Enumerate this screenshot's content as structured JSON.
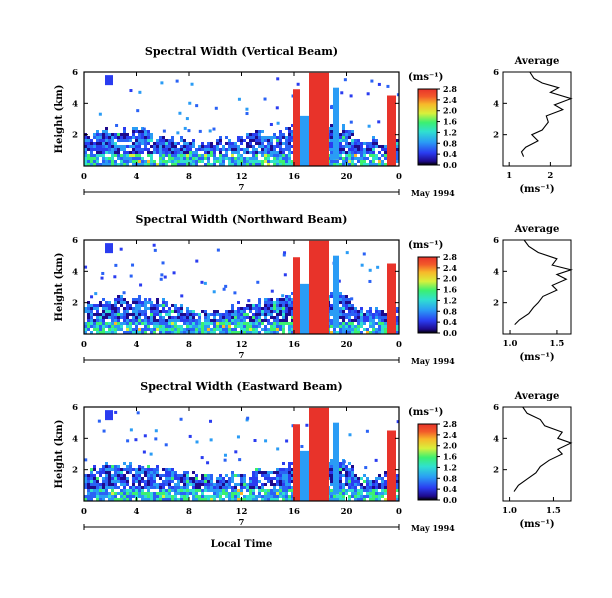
{
  "chart_data": {
    "type": "heatmap",
    "date_label": "May 1994",
    "xlabel": "Local Time",
    "unit_label": "(ms⁻¹)",
    "day_marker": "7",
    "x_ticks": [
      "0",
      "4",
      "8",
      "12",
      "16",
      "20",
      "0"
    ],
    "y_ticks": [
      "2",
      "4",
      "6"
    ],
    "colorbar_ticks": [
      "0.0",
      "0.4",
      "0.8",
      "1.2",
      "1.6",
      "2.0",
      "2.4",
      "2.8"
    ],
    "panels": [
      {
        "title": "Spectral Width (Vertical Beam)",
        "avg_title": "Average",
        "avg_xlabel": "(ms⁻¹)",
        "avg_ticks": [
          "1",
          "2"
        ],
        "avg_profile": [
          [
            1.35,
            0.6
          ],
          [
            1.3,
            0.9
          ],
          [
            1.4,
            1.2
          ],
          [
            1.7,
            1.6
          ],
          [
            1.55,
            2.0
          ],
          [
            1.8,
            2.3
          ],
          [
            1.95,
            2.8
          ],
          [
            1.9,
            3.2
          ],
          [
            2.3,
            3.6
          ],
          [
            2.1,
            3.9
          ],
          [
            2.5,
            4.3
          ],
          [
            2.0,
            4.7
          ],
          [
            2.2,
            5.0
          ],
          [
            1.8,
            5.3
          ],
          [
            1.6,
            5.6
          ],
          [
            1.5,
            6.0
          ]
        ]
      },
      {
        "title": "Spectral Width (Northward Beam)",
        "avg_title": "Average",
        "avg_xlabel": "(ms⁻¹)",
        "avg_ticks": [
          "1.0",
          "1.5"
        ],
        "avg_profile": [
          [
            1.05,
            0.6
          ],
          [
            1.1,
            0.9
          ],
          [
            1.2,
            1.3
          ],
          [
            1.25,
            1.7
          ],
          [
            1.3,
            2.0
          ],
          [
            1.35,
            2.4
          ],
          [
            1.5,
            2.8
          ],
          [
            1.45,
            3.1
          ],
          [
            1.6,
            3.5
          ],
          [
            1.5,
            3.8
          ],
          [
            1.65,
            4.1
          ],
          [
            1.45,
            4.4
          ],
          [
            1.5,
            4.8
          ],
          [
            1.3,
            5.2
          ],
          [
            1.2,
            5.6
          ],
          [
            1.15,
            6.0
          ]
        ]
      },
      {
        "title": "Spectral Width (Eastward Beam)",
        "avg_title": "Average",
        "avg_xlabel": "(ms⁻¹)",
        "avg_ticks": [
          "1.0",
          "1.5"
        ],
        "avg_profile": [
          [
            1.05,
            0.6
          ],
          [
            1.1,
            1.0
          ],
          [
            1.2,
            1.4
          ],
          [
            1.3,
            1.8
          ],
          [
            1.35,
            2.2
          ],
          [
            1.45,
            2.6
          ],
          [
            1.6,
            3.0
          ],
          [
            1.55,
            3.3
          ],
          [
            1.7,
            3.7
          ],
          [
            1.55,
            4.0
          ],
          [
            1.6,
            4.4
          ],
          [
            1.4,
            4.8
          ],
          [
            1.35,
            5.2
          ],
          [
            1.2,
            5.6
          ],
          [
            1.15,
            6.0
          ]
        ]
      }
    ]
  }
}
